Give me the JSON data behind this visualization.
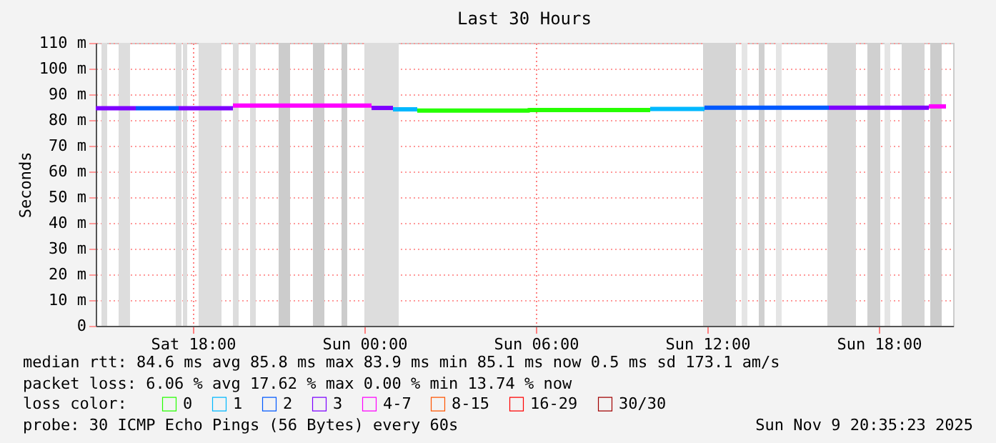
{
  "chart_data": {
    "type": "line",
    "title": "Last 30 Hours",
    "ylabel": "Seconds",
    "xlim": [
      "2025-11-08T14:36",
      "2025-11-09T20:36"
    ],
    "xticks": [
      {
        "value": "2025-11-08T18:00",
        "label": "Sat 18:00"
      },
      {
        "value": "2025-11-09T00:00",
        "label": "Sun 00:00"
      },
      {
        "value": "2025-11-09T06:00",
        "label": "Sun 06:00"
      },
      {
        "value": "2025-11-09T12:00",
        "label": "Sun 12:00"
      },
      {
        "value": "2025-11-09T18:00",
        "label": "Sun 18:00"
      }
    ],
    "ylim": [
      0,
      110
    ],
    "yticks": [
      {
        "value": 0,
        "label": "0"
      },
      {
        "value": 10,
        "label": "10 m"
      },
      {
        "value": 20,
        "label": "20 m"
      },
      {
        "value": 30,
        "label": "30 m"
      },
      {
        "value": 40,
        "label": "40 m"
      },
      {
        "value": 50,
        "label": "50 m"
      },
      {
        "value": 60,
        "label": "60 m"
      },
      {
        "value": 70,
        "label": "70 m"
      },
      {
        "value": 80,
        "label": "80 m"
      },
      {
        "value": 90,
        "label": "90 m"
      },
      {
        "value": 100,
        "label": "100 m"
      },
      {
        "value": 110,
        "label": "110 m"
      }
    ],
    "grid": true,
    "legend": "bottom",
    "legend_title": "loss color:",
    "line_style": "solid",
    "marker": "none",
    "series": [
      {
        "name": "0",
        "color": "#26ff00",
        "x": [
          "2025-11-09T01:51",
          "2025-11-09T05:45",
          "2025-11-09T05:45",
          "2025-11-09T10:00"
        ],
        "values": [
          83.7,
          83.7,
          83.9,
          83.9
        ]
      },
      {
        "name": "1",
        "color": "#00b8ff",
        "x": [
          "2025-11-09T01:00",
          "2025-11-09T01:51",
          null,
          "2025-11-09T10:00",
          "2025-11-09T11:54"
        ],
        "values": [
          84.2,
          84.2,
          null,
          84.3,
          84.3
        ]
      },
      {
        "name": "2",
        "color": "#0059ff",
        "x": [
          "2025-11-08T16:00",
          "2025-11-08T17:30",
          null,
          "2025-11-09T11:54",
          "2025-11-09T16:15"
        ],
        "values": [
          84.6,
          84.6,
          null,
          84.8,
          84.8
        ]
      },
      {
        "name": "3",
        "color": "#7e00ff",
        "x": [
          "2025-11-08T14:36",
          "2025-11-08T16:00",
          null,
          "2025-11-08T17:30",
          "2025-11-08T19:24",
          null,
          "2025-11-09T00:15",
          "2025-11-09T01:00",
          null,
          "2025-11-09T16:15",
          "2025-11-09T19:45"
        ],
        "values": [
          84.6,
          84.6,
          null,
          84.6,
          84.6,
          null,
          84.7,
          84.7,
          null,
          84.8,
          84.8
        ]
      },
      {
        "name": "4-7",
        "color": "#ff00ff",
        "x": [
          "2025-11-08T19:24",
          "2025-11-09T00:15",
          null,
          "2025-11-09T19:45",
          "2025-11-09T20:21"
        ],
        "values": [
          85.6,
          85.6,
          null,
          85.3,
          85.3
        ]
      },
      {
        "name": "8-15",
        "color": "#ff5500"
      },
      {
        "name": "16-29",
        "color": "#ff0000"
      },
      {
        "name": "30/30",
        "color": "#a10000"
      }
    ],
    "bands": [
      {
        "axis": "x",
        "from": "2025-11-08T14:48",
        "to": "2025-11-08T15:00",
        "color": "#dddddd"
      },
      {
        "axis": "x",
        "from": "2025-11-08T15:24",
        "to": "2025-11-08T15:48",
        "color": "#dddddd"
      },
      {
        "axis": "x",
        "from": "2025-11-08T17:24",
        "to": "2025-11-08T17:36",
        "color": "#dddddd"
      },
      {
        "axis": "x",
        "from": "2025-11-08T17:39",
        "to": "2025-11-08T17:48",
        "color": "#dddddd"
      },
      {
        "axis": "x",
        "from": "2025-11-08T18:12",
        "to": "2025-11-08T19:00",
        "color": "#dddddd"
      },
      {
        "axis": "x",
        "from": "2025-11-08T19:24",
        "to": "2025-11-08T19:36",
        "color": "#dddddd"
      },
      {
        "axis": "x",
        "from": "2025-11-08T20:00",
        "to": "2025-11-08T20:12",
        "color": "#dddddd"
      },
      {
        "axis": "x",
        "from": "2025-11-08T21:00",
        "to": "2025-11-08T21:24",
        "color": "#cccccc"
      },
      {
        "axis": "x",
        "from": "2025-11-08T22:12",
        "to": "2025-11-08T22:36",
        "color": "#cccccc"
      },
      {
        "axis": "x",
        "from": "2025-11-08T23:12",
        "to": "2025-11-08T23:24",
        "color": "#cccccc"
      },
      {
        "axis": "x",
        "from": "2025-11-09T00:00",
        "to": "2025-11-09T01:12",
        "color": "#dddddd"
      },
      {
        "axis": "x",
        "from": "2025-11-09T11:51",
        "to": "2025-11-09T13:00",
        "color": "#d5d5d5"
      },
      {
        "axis": "x",
        "from": "2025-11-09T13:12",
        "to": "2025-11-09T13:24",
        "color": "#e5e5e5"
      },
      {
        "axis": "x",
        "from": "2025-11-09T13:48",
        "to": "2025-11-09T14:00",
        "color": "#d0d0d0"
      },
      {
        "axis": "x",
        "from": "2025-11-09T14:24",
        "to": "2025-11-09T14:36",
        "color": "#e5e5e5"
      },
      {
        "axis": "x",
        "from": "2025-11-09T16:12",
        "to": "2025-11-09T17:12",
        "color": "#d5d5d5"
      },
      {
        "axis": "x",
        "from": "2025-11-09T17:36",
        "to": "2025-11-09T18:03",
        "color": "#d0d0d0"
      },
      {
        "axis": "x",
        "from": "2025-11-09T18:12",
        "to": "2025-11-09T18:24",
        "color": "#e5e5e5"
      },
      {
        "axis": "x",
        "from": "2025-11-09T18:48",
        "to": "2025-11-09T19:36",
        "color": "#d5d5d5"
      },
      {
        "axis": "x",
        "from": "2025-11-09T19:48",
        "to": "2025-11-09T20:12",
        "color": "#cccccc"
      }
    ],
    "annotations": [
      "median rtt:  84.6 ms avg  85.8 ms max  83.9 ms min  85.1 ms now  0.5 ms sd  173.1   am/s",
      "packet loss: 6.06 % avg  17.62 % max  0.00 % min  13.74 % now",
      "probe:       30 ICMP Echo Pings (56 Bytes) every 60s",
      "Sun Nov  9 20:35:23 2025"
    ]
  }
}
